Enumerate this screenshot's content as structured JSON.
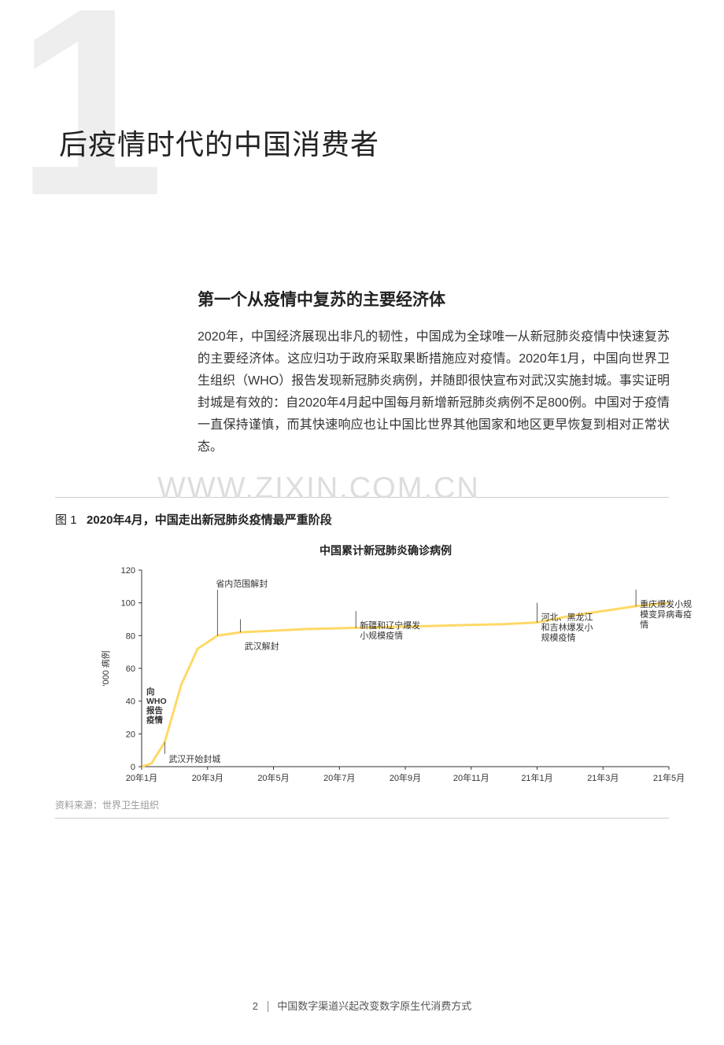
{
  "chapter_number": "1",
  "page_title": "后疫情时代的中国消费者",
  "section_heading": "第一个从疫情中复苏的主要经济体",
  "body_text": "2020年，中国经济展现出非凡的韧性，中国成为全球唯一从新冠肺炎疫情中快速复苏的主要经济体。这应归功于政府采取果断措施应对疫情。2020年1月，中国向世界卫生组织（WHO）报告发现新冠肺炎病例，并随即很快宣布对武汉实施封城。事实证明封城是有效的：自2020年4月起中国每月新增新冠肺炎病例不足800例。中国对于疫情一直保持谨慎，而其快速响应也让中国比世界其他国家和地区更早恢复到相对正常状态。",
  "watermark": "WWW.ZIXIN.COM.CN",
  "figure": {
    "label": "图",
    "number": "1",
    "title": "2020年4月，中国走出新冠肺炎疫情最严重阶段"
  },
  "chart": {
    "type": "line",
    "title": "中国累计新冠肺炎确诊病例",
    "y_axis_label": "'000 病例",
    "ylim": [
      0,
      120
    ],
    "yticks": [
      0,
      20,
      40,
      60,
      80,
      100,
      120
    ],
    "x_labels": [
      "20年1月",
      "20年3月",
      "20年5月",
      "20年7月",
      "20年9月",
      "20年11月",
      "21年1月",
      "21年3月",
      "21年5月"
    ],
    "x_positions": [
      0,
      2,
      4,
      6,
      8,
      10,
      12,
      14,
      16
    ],
    "line_color": "#ffd966",
    "line_width": 3,
    "axis_color": "#333333",
    "tick_color": "#333333",
    "label_fontsize": 11,
    "grid": false,
    "background_color": "#ffffff",
    "series": [
      {
        "x": 0.0,
        "y": 0
      },
      {
        "x": 0.3,
        "y": 2
      },
      {
        "x": 0.7,
        "y": 15
      },
      {
        "x": 1.2,
        "y": 50
      },
      {
        "x": 1.7,
        "y": 72
      },
      {
        "x": 2.3,
        "y": 80
      },
      {
        "x": 3.0,
        "y": 82
      },
      {
        "x": 4.0,
        "y": 83
      },
      {
        "x": 5.0,
        "y": 84
      },
      {
        "x": 6.0,
        "y": 84.5
      },
      {
        "x": 7.0,
        "y": 85
      },
      {
        "x": 8.0,
        "y": 85.5
      },
      {
        "x": 9.0,
        "y": 86
      },
      {
        "x": 10.0,
        "y": 86.5
      },
      {
        "x": 11.0,
        "y": 87
      },
      {
        "x": 12.0,
        "y": 88
      },
      {
        "x": 13.0,
        "y": 92
      },
      {
        "x": 14.0,
        "y": 95
      },
      {
        "x": 15.0,
        "y": 98
      },
      {
        "x": 16.0,
        "y": 100
      }
    ],
    "annotations": [
      {
        "x": 0.0,
        "y_line_top": 50,
        "label": "向\nWHO\n报告\n疫情",
        "side": "right",
        "small": true
      },
      {
        "x": 0.7,
        "y_line_top": 14,
        "label": "武汉开始封城",
        "below": true
      },
      {
        "x": 2.3,
        "y_line_top": 108,
        "label": "省内范围解封"
      },
      {
        "x": 3.0,
        "y_line_top": 90,
        "label": "武汉解封",
        "below_line": true
      },
      {
        "x": 6.5,
        "y_line_top": 95,
        "label": "新疆和辽宁爆发\n小规模疫情",
        "label_below": true
      },
      {
        "x": 12.0,
        "y_line_top": 100,
        "label": "河北、黑龙江\n和吉林爆发小\n规模疫情",
        "label_below": true
      },
      {
        "x": 15.0,
        "y_line_top": 108,
        "label": "重庆爆发小规\n模变异病毒疫\n情",
        "label_below": true
      }
    ]
  },
  "source_note": "资料来源：世界卫生组织",
  "footer": {
    "page_number": "2",
    "doc_title": "中国数字渠道兴起改变数字原生代消费方式"
  }
}
